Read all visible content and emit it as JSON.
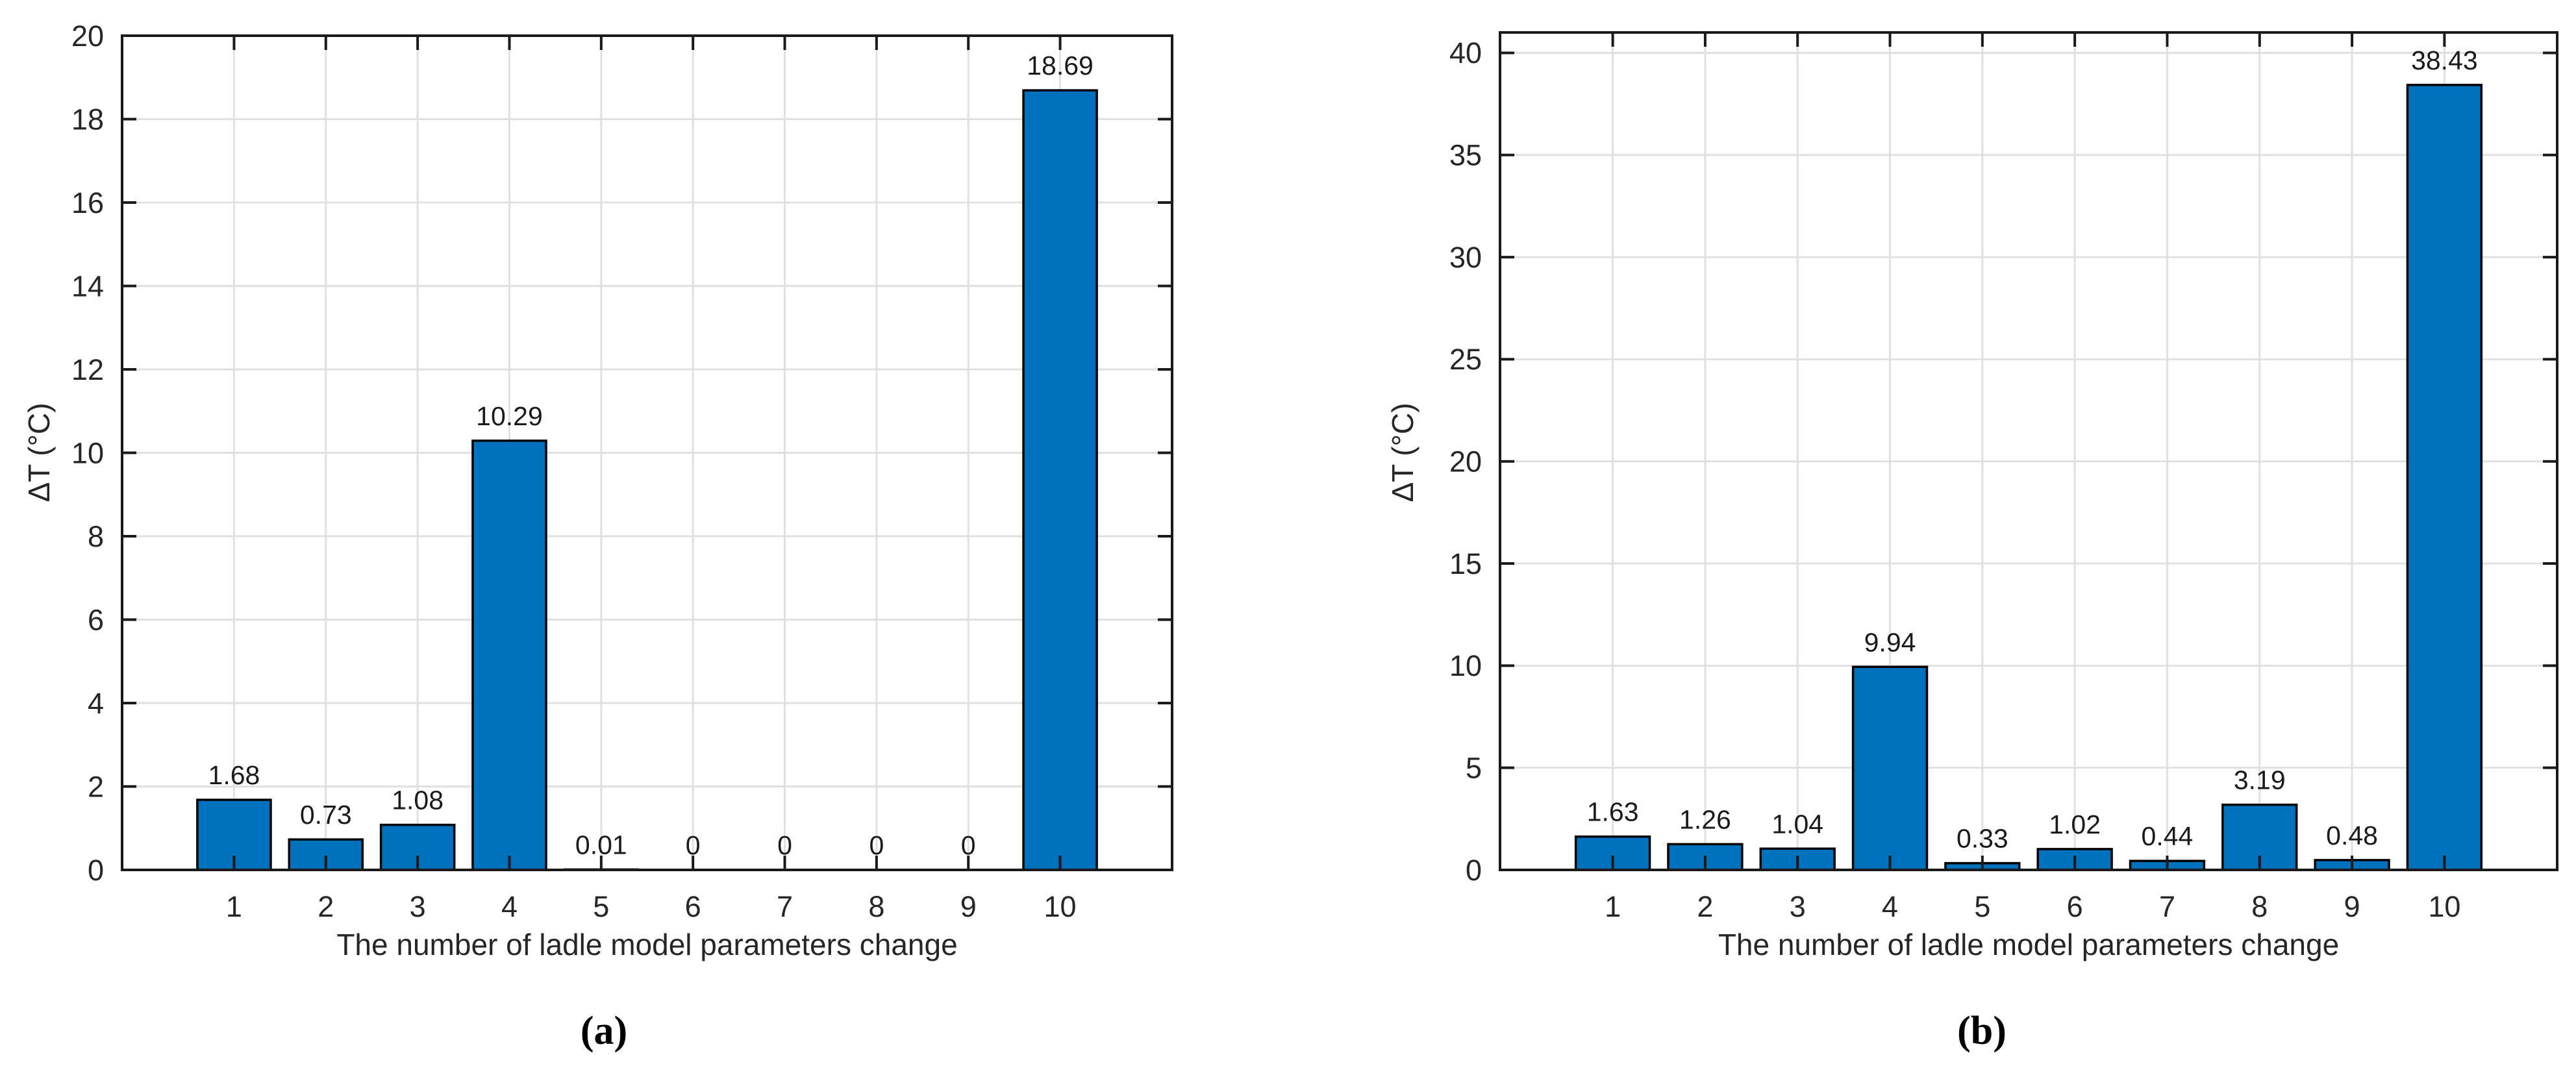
{
  "figure": {
    "bar_color": "#0072BD",
    "bar_edge_color": "#000000",
    "grid_color": "#e0e0e0",
    "axis_color": "#1a1a1a",
    "text_color": "#262626"
  },
  "chart_data": [
    {
      "type": "bar",
      "panel_label": "(a)",
      "title": "",
      "xlabel": "The number of ladle model parameters change",
      "ylabel": "ΔT (°C)",
      "categories": [
        "1",
        "2",
        "3",
        "4",
        "5",
        "6",
        "7",
        "8",
        "9",
        "10"
      ],
      "values": [
        1.68,
        0.73,
        1.08,
        10.29,
        0.01,
        0,
        0,
        0,
        0,
        18.69
      ],
      "bar_labels": [
        "1.68",
        "0.73",
        "1.08",
        "10.29",
        "0.01",
        "0",
        "0",
        "0",
        "0",
        "18.69"
      ],
      "ylim": [
        0,
        20
      ],
      "yticks": [
        0,
        2,
        4,
        6,
        8,
        10,
        12,
        14,
        16,
        18,
        20
      ],
      "grid": true,
      "legend_position": "none"
    },
    {
      "type": "bar",
      "panel_label": "(b)",
      "title": "",
      "xlabel": "The number of ladle model parameters change",
      "ylabel": "ΔT (°C)",
      "categories": [
        "1",
        "2",
        "3",
        "4",
        "5",
        "6",
        "7",
        "8",
        "9",
        "10"
      ],
      "values": [
        1.63,
        1.26,
        1.04,
        9.94,
        0.33,
        1.02,
        0.44,
        3.19,
        0.48,
        38.43
      ],
      "bar_labels": [
        "1.63",
        "1.26",
        "1.04",
        "9.94",
        "0.33",
        "1.02",
        "0.44",
        "3.19",
        "0.48",
        "38.43"
      ],
      "ylim": [
        0,
        41
      ],
      "yticks": [
        0,
        5,
        10,
        15,
        20,
        25,
        30,
        35,
        40
      ],
      "grid": true,
      "legend_position": "none"
    }
  ]
}
